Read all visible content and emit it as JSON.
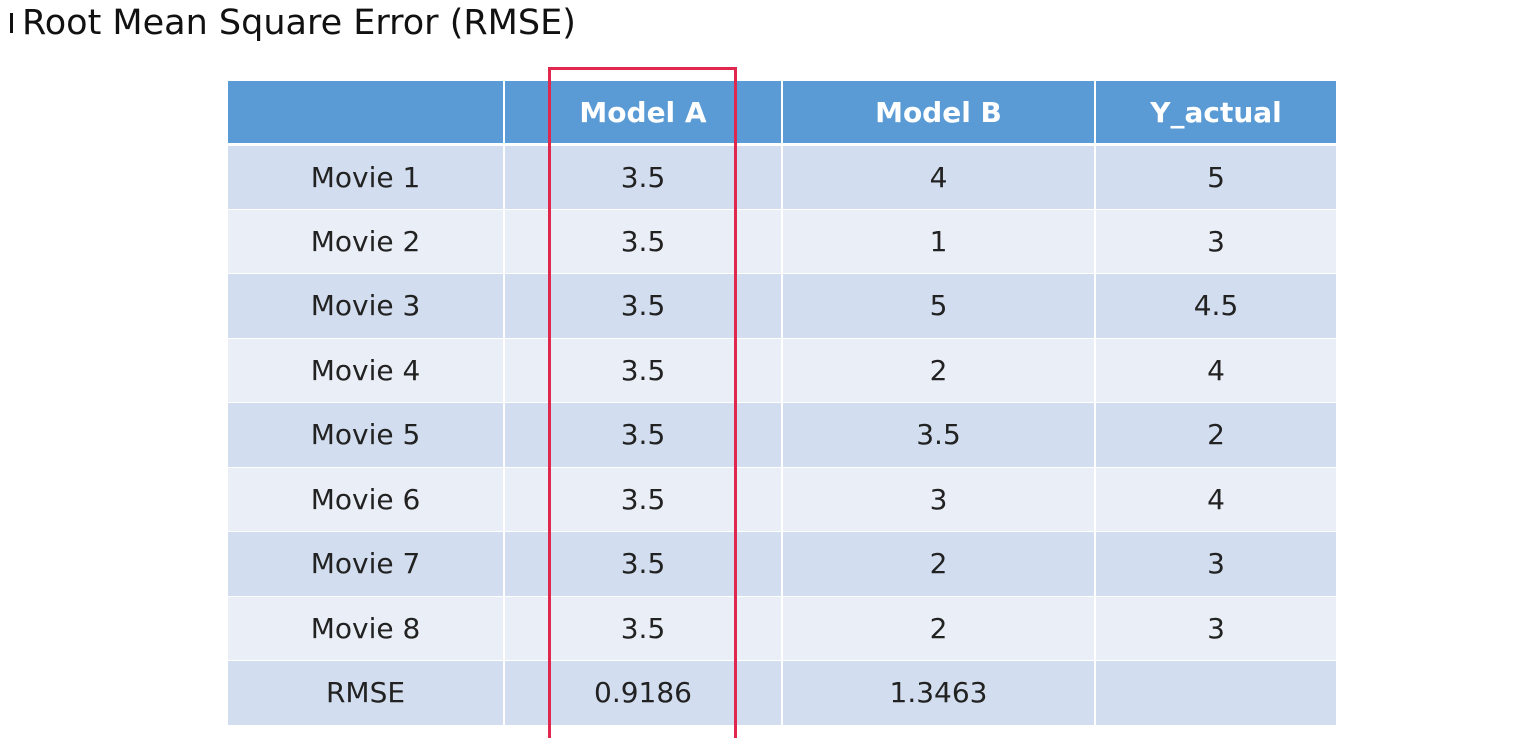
{
  "title": "Root Mean Square Error (RMSE)",
  "table": {
    "header": [
      "Model A",
      "Model B",
      "Y_actual"
    ],
    "rows": [
      [
        "Movie 1",
        "3.5",
        "4",
        "5"
      ],
      [
        "Movie 2",
        "3.5",
        "1",
        "3"
      ],
      [
        "Movie 3",
        "3.5",
        "5",
        "4.5"
      ],
      [
        "Movie 4",
        "3.5",
        "2",
        "4"
      ],
      [
        "Movie 5",
        "3.5",
        "3.5",
        "2"
      ],
      [
        "Movie 6",
        "3.5",
        "3",
        "4"
      ],
      [
        "Movie 7",
        "3.5",
        "2",
        "3"
      ],
      [
        "Movie 8",
        "3.5",
        "2",
        "3"
      ],
      [
        "RMSE",
        "0.9186",
        "1.3463"
      ]
    ]
  }
}
